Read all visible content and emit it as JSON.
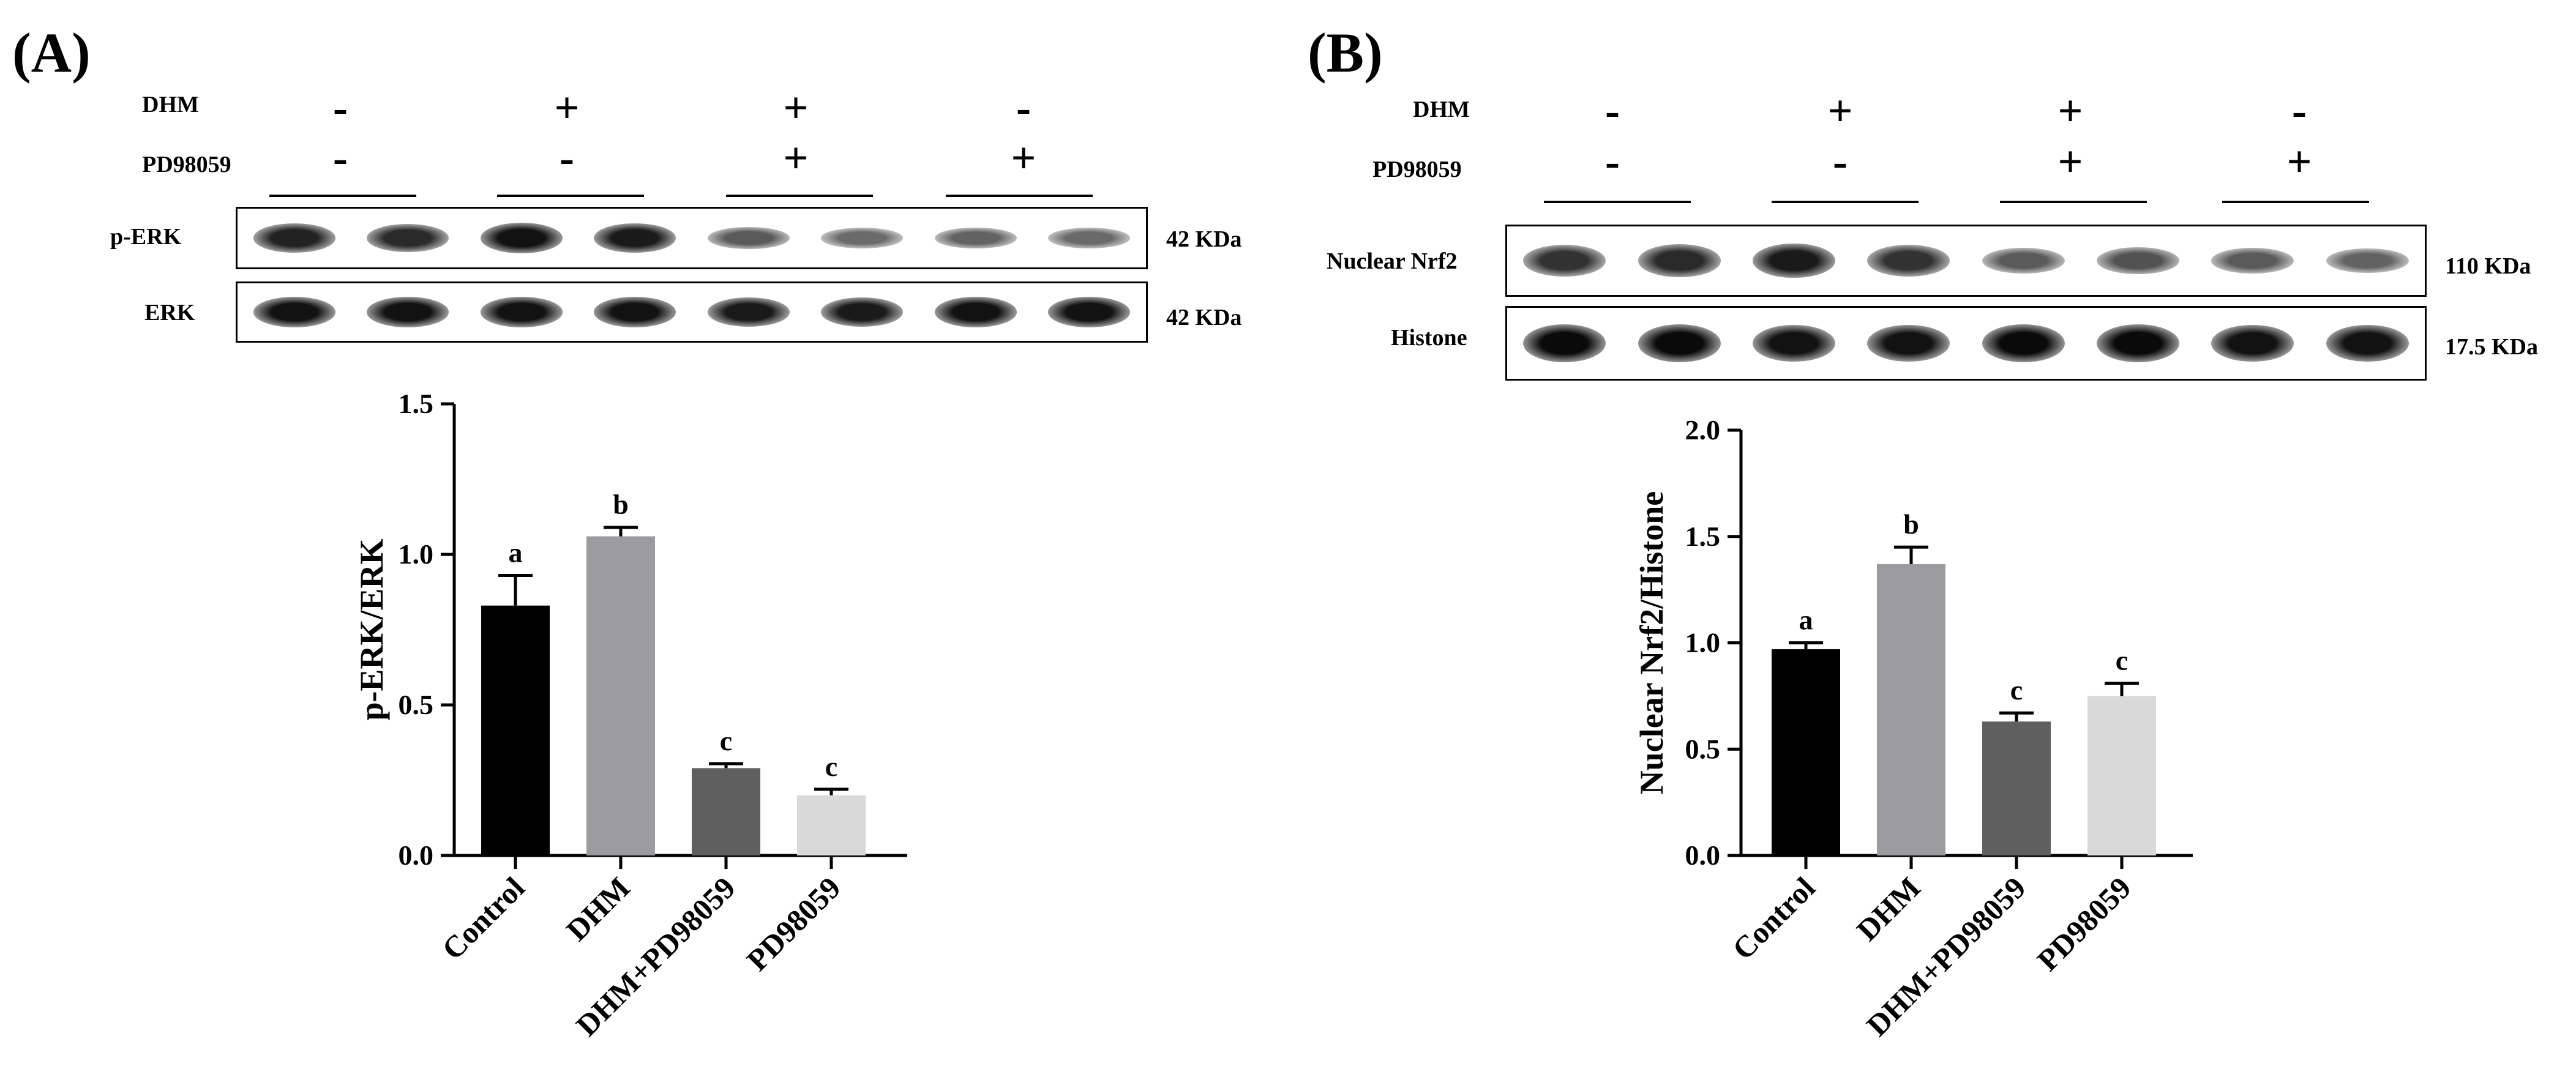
{
  "panels": {
    "A": {
      "label": "(A)",
      "treatment_rows": [
        {
          "name": "DHM",
          "signs": [
            "-",
            "+",
            "+",
            "-"
          ]
        },
        {
          "name": "PD98059",
          "signs": [
            "-",
            "-",
            "+",
            "+"
          ]
        }
      ],
      "blots": [
        {
          "name": "p-ERK",
          "kda": "42 KDa",
          "intensities": [
            0.85,
            0.8,
            0.95,
            0.9,
            0.5,
            0.4,
            0.45,
            0.4
          ]
        },
        {
          "name": "ERK",
          "kda": "42 KDa",
          "intensities": [
            0.95,
            0.95,
            0.95,
            0.95,
            0.9,
            0.9,
            0.95,
            0.95
          ]
        }
      ]
    },
    "B": {
      "label": "(B)",
      "treatment_rows": [
        {
          "name": "DHM",
          "signs": [
            "-",
            "+",
            "+",
            "-"
          ]
        },
        {
          "name": "PD98059",
          "signs": [
            "-",
            "-",
            "+",
            "+"
          ]
        }
      ],
      "blots": [
        {
          "name": "Nuclear Nrf2",
          "kda": "110 KDa",
          "intensities": [
            0.75,
            0.8,
            0.9,
            0.75,
            0.5,
            0.55,
            0.5,
            0.45
          ]
        },
        {
          "name": "Histone",
          "kda": "17.5 KDa",
          "intensities": [
            1.0,
            1.0,
            0.95,
            0.95,
            1.0,
            1.0,
            0.95,
            0.95
          ]
        }
      ]
    }
  },
  "chart_data": [
    {
      "type": "bar",
      "panel": "A",
      "categories": [
        "Control",
        "DHM",
        "DHM+PD98059",
        "PD98059"
      ],
      "values": [
        0.83,
        1.06,
        0.29,
        0.2
      ],
      "errors": [
        0.1,
        0.03,
        0.015,
        0.02
      ],
      "significance": [
        "a",
        "b",
        "c",
        "c"
      ],
      "bar_colors": [
        "#000000",
        "#9b9ba0",
        "#5f5f5f",
        "#d9d9d9"
      ],
      "ylabel": "p-ERK/ERK",
      "xlabel": "",
      "ylim": [
        0,
        1.5
      ],
      "yticks": [
        "0.0",
        "0.5",
        "1.0",
        "1.5"
      ],
      "grid": false
    },
    {
      "type": "bar",
      "panel": "B",
      "categories": [
        "Control",
        "DHM",
        "DHM+PD98059",
        "PD98059"
      ],
      "values": [
        0.97,
        1.37,
        0.63,
        0.75
      ],
      "errors": [
        0.03,
        0.08,
        0.04,
        0.06
      ],
      "significance": [
        "a",
        "b",
        "c",
        "c"
      ],
      "bar_colors": [
        "#000000",
        "#9b9ba0",
        "#5f5f5f",
        "#d9d9d9"
      ],
      "ylabel": "Nuclear Nrf2/Histone",
      "xlabel": "",
      "ylim": [
        0,
        2.0
      ],
      "yticks": [
        "0.0",
        "0.5",
        "1.0",
        "1.5",
        "2.0"
      ],
      "grid": false
    }
  ]
}
